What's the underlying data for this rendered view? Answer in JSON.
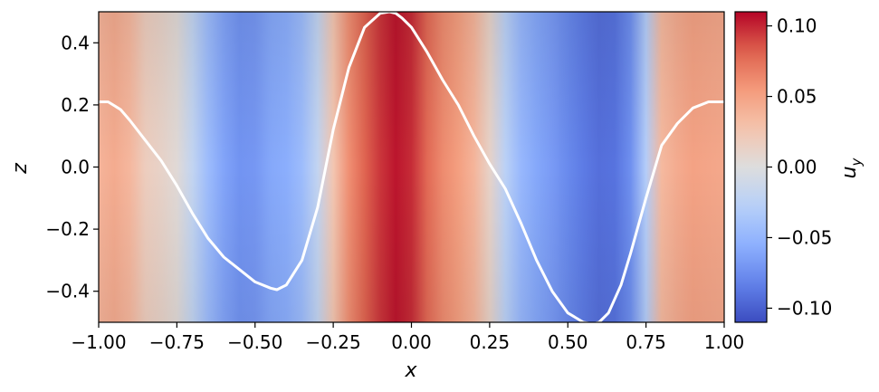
{
  "chart_data": {
    "type": "heatmap",
    "title": "",
    "xlabel": "x",
    "ylabel": "z",
    "xlim": [
      -1.0,
      1.0
    ],
    "ylim": [
      -0.5,
      0.5
    ],
    "x_ticks": [
      -1.0,
      -0.75,
      -0.5,
      -0.25,
      0.0,
      0.25,
      0.5,
      0.75,
      1.0
    ],
    "x_tick_labels": [
      "−1.00",
      "−0.75",
      "−0.50",
      "−0.25",
      "0.00",
      "0.25",
      "0.50",
      "0.75",
      "1.00"
    ],
    "y_ticks": [
      0.4,
      0.2,
      0.0,
      -0.2,
      -0.4
    ],
    "y_tick_labels": [
      "0.4",
      "0.2",
      "0.0",
      "−0.2",
      "−0.4"
    ],
    "grid": false,
    "colormap": "coolwarm",
    "colorbar": {
      "label_base": "u",
      "label_sub": "y",
      "range": [
        -0.11,
        0.11
      ],
      "ticks": [
        0.1,
        0.05,
        0.0,
        -0.05,
        -0.1
      ],
      "tick_labels": [
        "0.10",
        "0.05",
        "0.00",
        "−0.05",
        "−0.10"
      ]
    },
    "field_profile": {
      "x": [
        -1.0,
        -0.95,
        -0.9,
        -0.85,
        -0.8,
        -0.75,
        -0.7,
        -0.65,
        -0.6,
        -0.55,
        -0.5,
        -0.45,
        -0.4,
        -0.35,
        -0.3,
        -0.25,
        -0.2,
        -0.15,
        -0.1,
        -0.05,
        0.0,
        0.05,
        0.1,
        0.15,
        0.2,
        0.25,
        0.3,
        0.35,
        0.4,
        0.45,
        0.5,
        0.55,
        0.6,
        0.65,
        0.7,
        0.75,
        0.8,
        0.85,
        0.9,
        0.95,
        1.0
      ],
      "u_y": [
        0.038,
        0.044,
        0.036,
        0.018,
        0.012,
        0.004,
        -0.02,
        -0.045,
        -0.062,
        -0.072,
        -0.07,
        -0.06,
        -0.056,
        -0.045,
        -0.02,
        0.025,
        0.06,
        0.08,
        0.095,
        0.105,
        0.098,
        0.078,
        0.062,
        0.052,
        0.038,
        0.012,
        -0.025,
        -0.048,
        -0.06,
        -0.068,
        -0.078,
        -0.086,
        -0.092,
        -0.09,
        -0.075,
        -0.03,
        0.035,
        0.044,
        0.05,
        0.048,
        0.046
      ]
    },
    "line": {
      "color": "#ffffff",
      "x": [
        -1.0,
        -0.97,
        -0.93,
        -0.9,
        -0.85,
        -0.8,
        -0.75,
        -0.7,
        -0.65,
        -0.6,
        -0.55,
        -0.5,
        -0.45,
        -0.43,
        -0.4,
        -0.35,
        -0.3,
        -0.25,
        -0.2,
        -0.15,
        -0.1,
        -0.07,
        -0.05,
        -0.03,
        0.0,
        0.05,
        0.1,
        0.15,
        0.2,
        0.25,
        0.3,
        0.35,
        0.4,
        0.45,
        0.5,
        0.55,
        0.58,
        0.6,
        0.63,
        0.67,
        0.7,
        0.75,
        0.8,
        0.85,
        0.9,
        0.95,
        1.0
      ],
      "y": [
        0.21,
        0.21,
        0.185,
        0.15,
        0.085,
        0.02,
        -0.06,
        -0.15,
        -0.23,
        -0.29,
        -0.33,
        -0.37,
        -0.39,
        -0.395,
        -0.38,
        -0.3,
        -0.13,
        0.12,
        0.32,
        0.45,
        0.495,
        0.5,
        0.495,
        0.48,
        0.45,
        0.37,
        0.28,
        0.2,
        0.1,
        0.01,
        -0.07,
        -0.18,
        -0.3,
        -0.4,
        -0.47,
        -0.5,
        -0.505,
        -0.5,
        -0.47,
        -0.38,
        -0.28,
        -0.1,
        0.07,
        0.14,
        0.19,
        0.21,
        0.21
      ]
    }
  }
}
